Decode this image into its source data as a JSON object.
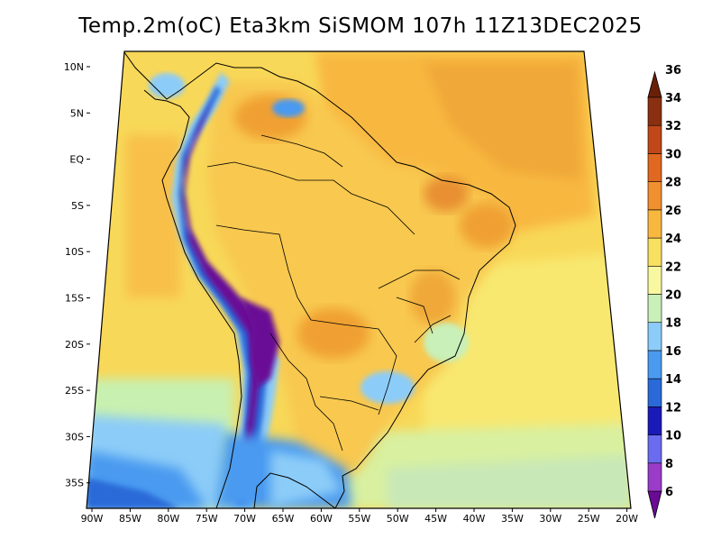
{
  "title": "Temp.2m(oC) Eta3km SiSMOM 107h 11Z13DEC2025",
  "lat_labels": [
    "10N",
    "5N",
    "EQ",
    "5S",
    "10S",
    "15S",
    "20S",
    "25S",
    "30S",
    "35S"
  ],
  "lon_labels": [
    "90W",
    "85W",
    "80W",
    "75W",
    "70W",
    "65W",
    "60W",
    "55W",
    "50W",
    "45W",
    "40W",
    "35W",
    "30W",
    "25W",
    "20W"
  ],
  "colorbar": {
    "min_label": "6",
    "labels": [
      "8",
      "10",
      "12",
      "14",
      "16",
      "18",
      "20",
      "22",
      "24",
      "26",
      "28",
      "30",
      "32",
      "34",
      "36"
    ],
    "colors": [
      "#6a0a96",
      "#9a3cc8",
      "#6b6bf0",
      "#1a1ab8",
      "#2a6ad8",
      "#4a9af0",
      "#8cccf8",
      "#c8f0b8",
      "#f8f8a0",
      "#f8e060",
      "#f8b840",
      "#f09030",
      "#e06820",
      "#c04818",
      "#8a3010",
      "#6a2008"
    ]
  }
}
